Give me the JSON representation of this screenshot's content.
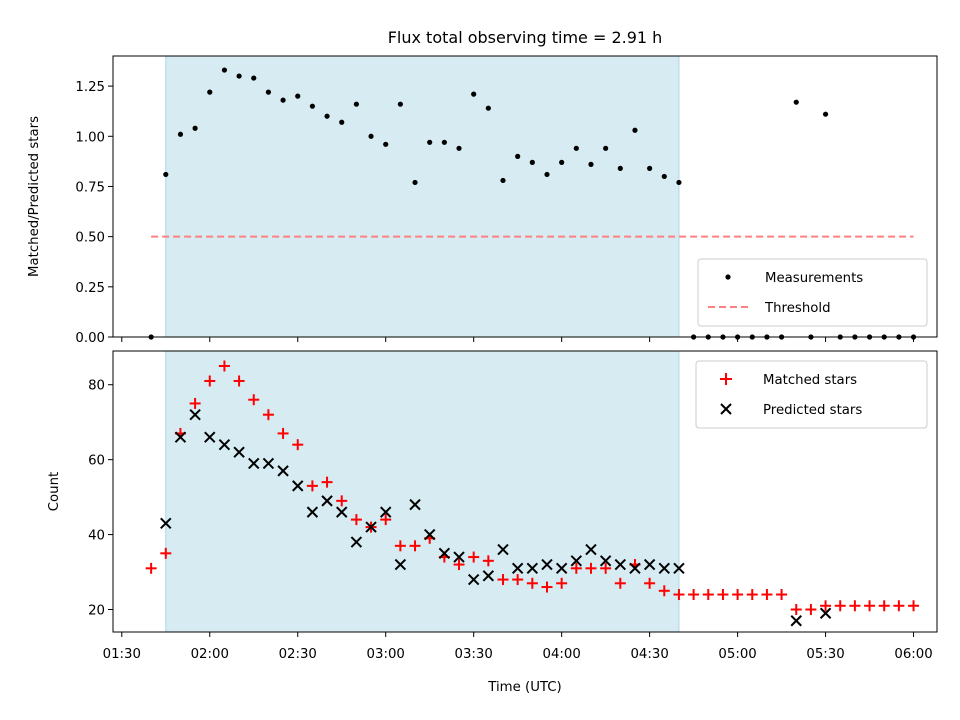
{
  "chart_data": [
    {
      "type": "scatter",
      "title": "Flux total observing time = 2.91 h",
      "xlabel": "",
      "ylabel": "Matched/Predicted stars",
      "ylim": [
        0,
        1.4
      ],
      "yticks": [
        "0.00",
        "0.25",
        "0.50",
        "0.75",
        "1.00",
        "1.25"
      ],
      "xlim": [
        "01:27",
        "06:08"
      ],
      "shaded_interval": [
        "01:45",
        "04:40"
      ],
      "legend": {
        "placement": "lower-right",
        "entries": [
          "Measurements",
          "Threshold"
        ]
      },
      "threshold": {
        "name": "Threshold",
        "value": 0.5,
        "x_range": [
          "01:40",
          "06:00"
        ],
        "color": "#ff8080",
        "style": "dashed"
      },
      "series": [
        {
          "name": "Measurements",
          "color": "#000000",
          "marker": "dot",
          "x": [
            "01:40",
            "01:45",
            "01:50",
            "01:55",
            "02:00",
            "02:05",
            "02:10",
            "02:15",
            "02:20",
            "02:25",
            "02:30",
            "02:35",
            "02:40",
            "02:45",
            "02:50",
            "02:55",
            "03:00",
            "03:05",
            "03:10",
            "03:15",
            "03:20",
            "03:25",
            "03:30",
            "03:35",
            "03:40",
            "03:45",
            "03:50",
            "03:55",
            "04:00",
            "04:05",
            "04:10",
            "04:15",
            "04:20",
            "04:25",
            "04:30",
            "04:35",
            "04:40",
            "04:45",
            "04:50",
            "04:55",
            "05:00",
            "05:05",
            "05:10",
            "05:15",
            "05:20",
            "05:25",
            "05:30",
            "05:35",
            "05:40",
            "05:45",
            "05:50",
            "05:55",
            "06:00"
          ],
          "y": [
            0.0,
            0.81,
            1.01,
            1.04,
            1.22,
            1.33,
            1.3,
            1.29,
            1.22,
            1.18,
            1.2,
            1.15,
            1.1,
            1.07,
            1.16,
            1.0,
            0.96,
            1.16,
            0.77,
            0.97,
            0.97,
            0.94,
            1.21,
            1.14,
            0.78,
            0.9,
            0.87,
            0.81,
            0.87,
            0.94,
            0.86,
            0.94,
            0.84,
            1.03,
            0.84,
            0.8,
            0.77,
            0.0,
            0.0,
            0.0,
            0.0,
            0.0,
            0.0,
            0.0,
            1.17,
            0.0,
            1.11,
            0.0,
            0.0,
            0.0,
            0.0,
            0.0,
            0.0
          ]
        }
      ]
    },
    {
      "type": "scatter",
      "title": "",
      "xlabel": "Time (UTC)",
      "ylabel": "Count",
      "ylim": [
        14,
        89
      ],
      "yticks": [
        "20",
        "40",
        "60",
        "80"
      ],
      "xlim": [
        "01:27",
        "06:08"
      ],
      "xticks": [
        "01:30",
        "02:00",
        "02:30",
        "03:00",
        "03:30",
        "04:00",
        "04:30",
        "05:00",
        "05:30",
        "06:00"
      ],
      "shaded_interval": [
        "01:45",
        "04:40"
      ],
      "legend": {
        "placement": "top-right",
        "entries": [
          "Matched stars",
          "Predicted stars"
        ]
      },
      "series": [
        {
          "name": "Matched stars",
          "color": "#ff0000",
          "marker": "plus",
          "x": [
            "01:40",
            "01:45",
            "01:50",
            "01:55",
            "02:00",
            "02:05",
            "02:10",
            "02:15",
            "02:20",
            "02:25",
            "02:30",
            "02:35",
            "02:40",
            "02:45",
            "02:50",
            "02:55",
            "03:00",
            "03:05",
            "03:10",
            "03:15",
            "03:20",
            "03:25",
            "03:30",
            "03:35",
            "03:40",
            "03:45",
            "03:50",
            "03:55",
            "04:00",
            "04:05",
            "04:10",
            "04:15",
            "04:20",
            "04:25",
            "04:30",
            "04:35",
            "04:40",
            "04:45",
            "04:50",
            "04:55",
            "05:00",
            "05:05",
            "05:10",
            "05:15",
            "05:20",
            "05:25",
            "05:30",
            "05:35",
            "05:40",
            "05:45",
            "05:50",
            "05:55",
            "06:00"
          ],
          "y": [
            31,
            35,
            67,
            75,
            81,
            85,
            81,
            76,
            72,
            67,
            64,
            53,
            54,
            49,
            44,
            42,
            44,
            37,
            37,
            39,
            34,
            32,
            34,
            33,
            28,
            28,
            27,
            26,
            27,
            31,
            31,
            31,
            27,
            32,
            27,
            25,
            24,
            24,
            24,
            24,
            24,
            24,
            24,
            24,
            20,
            20,
            21,
            21,
            21,
            21,
            21,
            21,
            21
          ]
        },
        {
          "name": "Predicted stars",
          "color": "#000000",
          "marker": "x",
          "x": [
            "01:45",
            "01:50",
            "01:55",
            "02:00",
            "02:05",
            "02:10",
            "02:15",
            "02:20",
            "02:25",
            "02:30",
            "02:35",
            "02:40",
            "02:45",
            "02:50",
            "02:55",
            "03:00",
            "03:05",
            "03:10",
            "03:15",
            "03:20",
            "03:25",
            "03:30",
            "03:35",
            "03:40",
            "03:45",
            "03:50",
            "03:55",
            "04:00",
            "04:05",
            "04:10",
            "04:15",
            "04:20",
            "04:25",
            "04:30",
            "04:35",
            "04:40",
            "05:20",
            "05:30"
          ],
          "y": [
            43,
            66,
            72,
            66,
            64,
            62,
            59,
            59,
            57,
            53,
            46,
            49,
            46,
            38,
            42,
            46,
            32,
            48,
            40,
            35,
            34,
            28,
            29,
            36,
            31,
            31,
            32,
            31,
            33,
            36,
            33,
            32,
            31,
            32,
            31,
            31,
            17,
            19
          ]
        }
      ]
    }
  ]
}
